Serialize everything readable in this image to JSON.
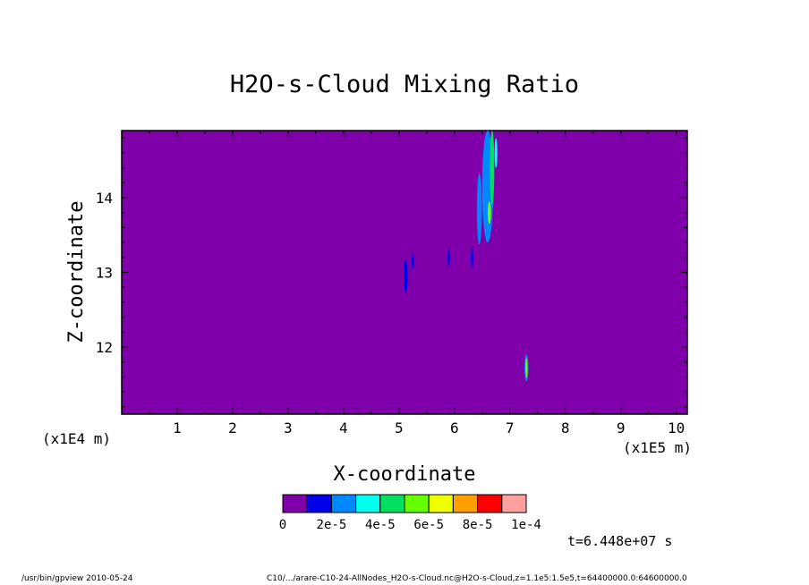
{
  "chart_data": {
    "type": "heatmap",
    "title": "H2O-s-Cloud Mixing Ratio",
    "xlabel": "X-coordinate",
    "ylabel": "Z-coordinate",
    "x_unit": "(x1E5 m)",
    "y_unit": "(x1E4 m)",
    "xlim": [
      0,
      10.2
    ],
    "ylim": [
      11.1,
      14.9
    ],
    "x_ticks": [
      "1",
      "2",
      "3",
      "4",
      "5",
      "6",
      "7",
      "8",
      "9",
      "10"
    ],
    "y_ticks": [
      "12",
      "13",
      "14"
    ],
    "background_level": 0,
    "features": [
      {
        "x": 5.12,
        "y": 12.95,
        "w": 0.07,
        "h": 0.45,
        "level": 1
      },
      {
        "x": 5.25,
        "y": 13.15,
        "w": 0.04,
        "h": 0.25,
        "level": 1
      },
      {
        "x": 5.9,
        "y": 13.2,
        "w": 0.04,
        "h": 0.25,
        "level": 1
      },
      {
        "x": 6.32,
        "y": 13.2,
        "w": 0.04,
        "h": 0.3,
        "level": 1
      },
      {
        "x": 6.45,
        "y": 13.85,
        "w": 0.09,
        "h": 0.95,
        "level": 2
      },
      {
        "x": 6.6,
        "y": 14.15,
        "w": 0.2,
        "h": 1.5,
        "level": 2
      },
      {
        "x": 6.68,
        "y": 14.4,
        "w": 0.08,
        "h": 1.0,
        "level": 4
      },
      {
        "x": 6.63,
        "y": 13.8,
        "w": 0.06,
        "h": 0.3,
        "level": 5
      },
      {
        "x": 6.75,
        "y": 14.6,
        "w": 0.05,
        "h": 0.4,
        "level": 3
      },
      {
        "x": 7.3,
        "y": 11.72,
        "w": 0.07,
        "h": 0.36,
        "level": 2
      },
      {
        "x": 7.3,
        "y": 11.72,
        "w": 0.04,
        "h": 0.26,
        "level": 5
      }
    ],
    "colorbar": {
      "colors": [
        "#7F00AA",
        "#0000E8",
        "#0088FF",
        "#00FFEE",
        "#00E060",
        "#66FF00",
        "#EEFF00",
        "#FFA000",
        "#FF0000",
        "#FFA0A0"
      ],
      "labels": [
        "0",
        "2e-5",
        "4e-5",
        "6e-5",
        "8e-5",
        "1e-4"
      ]
    },
    "annotation": "t=6.448e+07 s"
  },
  "footer": {
    "left": "/usr/bin/gpview  2010-05-24",
    "right": "C10/.../arare-C10-24-AllNodes_H2O-s-Cloud.nc@H2O-s-Cloud,z=1.1e5:1.5e5,t=64400000.0:64600000.0"
  }
}
